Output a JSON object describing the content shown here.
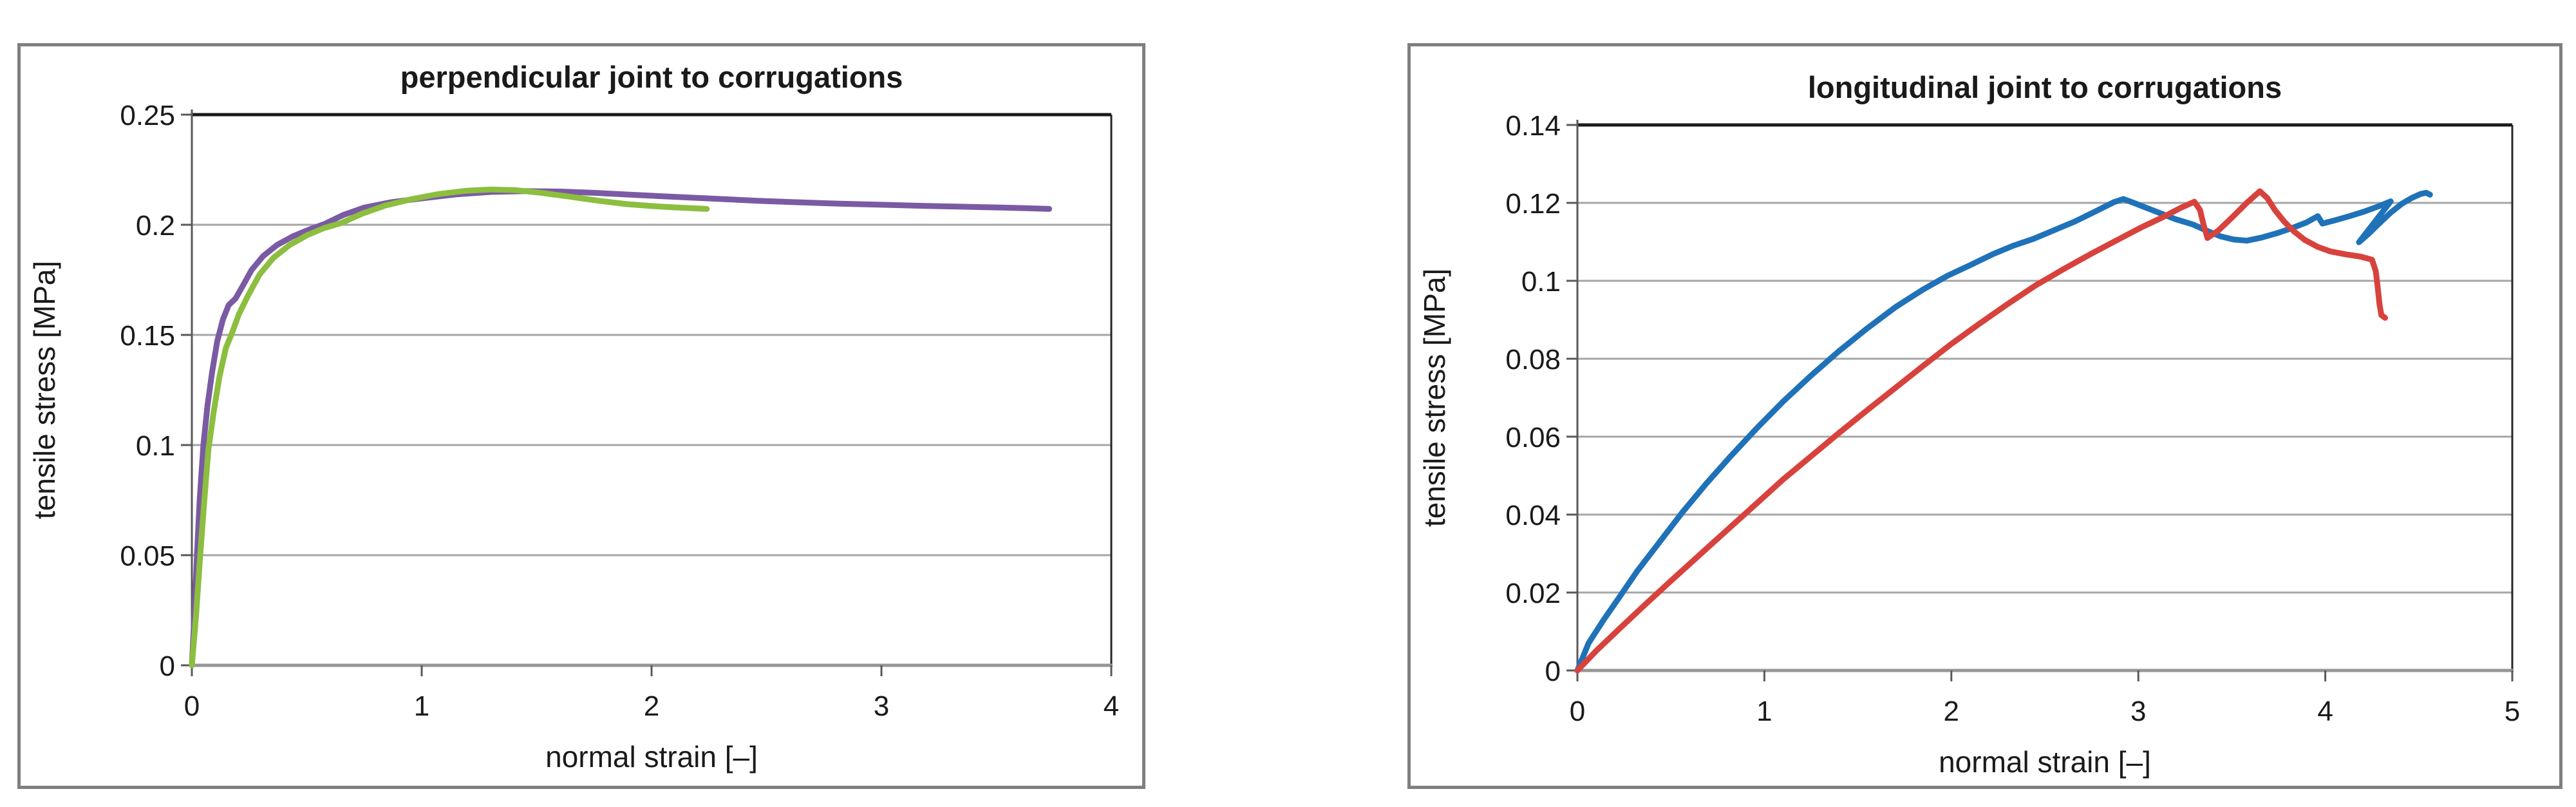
{
  "page": {
    "background": "#FFFFFF"
  },
  "style": {
    "grid_color": "#A6A6A6",
    "axis_color": "#595959",
    "top_border_color": "#1A1A1A",
    "right_border_color": "#262626",
    "bottom_axis_color": "#969696",
    "figure_border_color": "#7F7F7F",
    "text_color": "#1A1A1A",
    "background": "#FFFFFF"
  },
  "chart_data": [
    {
      "type": "line",
      "title": "perpendicular joint to corrugations",
      "xlabel": "normal strain [–]",
      "ylabel": "tensile stress [MPa]",
      "xlim": [
        0,
        4
      ],
      "ylim": [
        0,
        0.25
      ],
      "grid": true,
      "legend_position": "none",
      "xticks": [
        {
          "v": 0,
          "label": "0"
        },
        {
          "v": 1,
          "label": "1"
        },
        {
          "v": 2,
          "label": "2"
        },
        {
          "v": 3,
          "label": "3"
        },
        {
          "v": 4,
          "label": "4"
        }
      ],
      "yticks": [
        {
          "v": 0,
          "label": "0"
        },
        {
          "v": 0.05,
          "label": "0.05"
        },
        {
          "v": 0.1,
          "label": "0.1"
        },
        {
          "v": 0.15,
          "label": "0.15"
        },
        {
          "v": 0.2,
          "label": "0.2"
        },
        {
          "v": 0.25,
          "label": "0.25"
        }
      ],
      "series": [
        {
          "name": "purple-specimen",
          "color": "#7B5AA4",
          "points": [
            [
              0,
              0
            ],
            [
              0.012,
              0.025
            ],
            [
              0.022,
              0.05
            ],
            [
              0.034,
              0.075
            ],
            [
              0.05,
              0.1
            ],
            [
              0.068,
              0.118
            ],
            [
              0.088,
              0.133
            ],
            [
              0.11,
              0.147
            ],
            [
              0.135,
              0.157
            ],
            [
              0.16,
              0.1635
            ],
            [
              0.19,
              0.1665
            ],
            [
              0.22,
              0.172
            ],
            [
              0.26,
              0.1795
            ],
            [
              0.31,
              0.1858
            ],
            [
              0.37,
              0.1908
            ],
            [
              0.44,
              0.1948
            ],
            [
              0.51,
              0.1978
            ],
            [
              0.58,
              0.2005
            ],
            [
              0.66,
              0.2045
            ],
            [
              0.75,
              0.2078
            ],
            [
              0.87,
              0.2103
            ],
            [
              1.0,
              0.212
            ],
            [
              1.15,
              0.2138
            ],
            [
              1.3,
              0.2149
            ],
            [
              1.45,
              0.2153
            ],
            [
              1.6,
              0.2151
            ],
            [
              1.75,
              0.2145
            ],
            [
              1.92,
              0.2136
            ],
            [
              2.1,
              0.2127
            ],
            [
              2.28,
              0.2118
            ],
            [
              2.46,
              0.2109
            ],
            [
              2.64,
              0.2102
            ],
            [
              2.82,
              0.2096
            ],
            [
              3.0,
              0.2091
            ],
            [
              3.18,
              0.2086
            ],
            [
              3.36,
              0.2082
            ],
            [
              3.52,
              0.2078
            ],
            [
              3.64,
              0.2075
            ],
            [
              3.73,
              0.2072
            ]
          ]
        },
        {
          "name": "green-specimen",
          "color": "#8CBE3F",
          "points": [
            [
              0,
              0
            ],
            [
              0.018,
              0.022
            ],
            [
              0.035,
              0.048
            ],
            [
              0.052,
              0.072
            ],
            [
              0.072,
              0.098
            ],
            [
              0.095,
              0.115
            ],
            [
              0.12,
              0.131
            ],
            [
              0.148,
              0.144
            ],
            [
              0.175,
              0.151
            ],
            [
              0.205,
              0.1595
            ],
            [
              0.245,
              0.168
            ],
            [
              0.295,
              0.1775
            ],
            [
              0.355,
              0.185
            ],
            [
              0.425,
              0.1908
            ],
            [
              0.5,
              0.1952
            ],
            [
              0.575,
              0.1985
            ],
            [
              0.65,
              0.2008
            ],
            [
              0.74,
              0.205
            ],
            [
              0.84,
              0.2087
            ],
            [
              0.95,
              0.2115
            ],
            [
              1.07,
              0.2139
            ],
            [
              1.19,
              0.2154
            ],
            [
              1.3,
              0.216
            ],
            [
              1.41,
              0.2157
            ],
            [
              1.52,
              0.2145
            ],
            [
              1.64,
              0.2128
            ],
            [
              1.77,
              0.2109
            ],
            [
              1.89,
              0.2094
            ],
            [
              2.0,
              0.2085
            ],
            [
              2.1,
              0.2079
            ],
            [
              2.18,
              0.2075
            ],
            [
              2.24,
              0.2072
            ]
          ]
        }
      ]
    },
    {
      "type": "line",
      "title": "longitudinal joint to corrugations",
      "xlabel": "normal strain [–]",
      "ylabel": "tensile stress [MPa]",
      "xlim": [
        0,
        5
      ],
      "ylim": [
        0,
        0.14
      ],
      "grid": true,
      "legend_position": "none",
      "xticks": [
        {
          "v": 0,
          "label": "0"
        },
        {
          "v": 1,
          "label": "1"
        },
        {
          "v": 2,
          "label": "2"
        },
        {
          "v": 3,
          "label": "3"
        },
        {
          "v": 4,
          "label": "4"
        },
        {
          "v": 5,
          "label": "5"
        }
      ],
      "yticks": [
        {
          "v": 0,
          "label": "0"
        },
        {
          "v": 0.02,
          "label": "0.02"
        },
        {
          "v": 0.04,
          "label": "0.04"
        },
        {
          "v": 0.06,
          "label": "0.06"
        },
        {
          "v": 0.08,
          "label": "0.08"
        },
        {
          "v": 0.1,
          "label": "0.1"
        },
        {
          "v": 0.12,
          "label": "0.12"
        },
        {
          "v": 0.14,
          "label": "0.14"
        }
      ],
      "series": [
        {
          "name": "blue-specimen",
          "color": "#1F72B8",
          "points": [
            [
              0,
              0
            ],
            [
              0.06,
              0.007
            ],
            [
              0.14,
              0.013
            ],
            [
              0.22,
              0.0185
            ],
            [
              0.32,
              0.0255
            ],
            [
              0.44,
              0.033
            ],
            [
              0.56,
              0.0405
            ],
            [
              0.69,
              0.048
            ],
            [
              0.82,
              0.055
            ],
            [
              0.96,
              0.0622
            ],
            [
              1.1,
              0.069
            ],
            [
              1.25,
              0.0757
            ],
            [
              1.4,
              0.082
            ],
            [
              1.55,
              0.0878
            ],
            [
              1.7,
              0.0932
            ],
            [
              1.85,
              0.0978
            ],
            [
              1.98,
              0.1013
            ],
            [
              2.1,
              0.104
            ],
            [
              2.22,
              0.1068
            ],
            [
              2.33,
              0.109
            ],
            [
              2.44,
              0.1108
            ],
            [
              2.55,
              0.113
            ],
            [
              2.66,
              0.1152
            ],
            [
              2.77,
              0.1178
            ],
            [
              2.87,
              0.1202
            ],
            [
              2.92,
              0.121
            ],
            [
              2.97,
              0.1201
            ],
            [
              3.04,
              0.1188
            ],
            [
              3.12,
              0.1173
            ],
            [
              3.2,
              0.1158
            ],
            [
              3.29,
              0.1145
            ],
            [
              3.37,
              0.1128
            ],
            [
              3.44,
              0.1114
            ],
            [
              3.51,
              0.1106
            ],
            [
              3.58,
              0.1103
            ],
            [
              3.66,
              0.1111
            ],
            [
              3.74,
              0.1122
            ],
            [
              3.82,
              0.1135
            ],
            [
              3.9,
              0.115
            ],
            [
              3.96,
              0.1166
            ],
            [
              3.985,
              0.1147
            ],
            [
              4.05,
              0.1155
            ],
            [
              4.13,
              0.1166
            ],
            [
              4.21,
              0.1178
            ],
            [
              4.29,
              0.1192
            ],
            [
              4.35,
              0.1204
            ],
            [
              4.18,
              0.1099
            ],
            [
              4.23,
              0.112
            ],
            [
              4.29,
              0.1148
            ],
            [
              4.35,
              0.1175
            ],
            [
              4.41,
              0.1198
            ],
            [
              4.46,
              0.1212
            ],
            [
              4.51,
              0.1223
            ],
            [
              4.54,
              0.1226
            ],
            [
              4.56,
              0.1221
            ]
          ]
        },
        {
          "name": "red-specimen",
          "color": "#D8423C",
          "points": [
            [
              0,
              0
            ],
            [
              0.1,
              0.005
            ],
            [
              0.22,
              0.0105
            ],
            [
              0.36,
              0.0168
            ],
            [
              0.5,
              0.023
            ],
            [
              0.65,
              0.0295
            ],
            [
              0.8,
              0.036
            ],
            [
              0.95,
              0.0425
            ],
            [
              1.1,
              0.049
            ],
            [
              1.25,
              0.055
            ],
            [
              1.4,
              0.061
            ],
            [
              1.55,
              0.0668
            ],
            [
              1.7,
              0.0725
            ],
            [
              1.85,
              0.0782
            ],
            [
              2.0,
              0.0838
            ],
            [
              2.15,
              0.089
            ],
            [
              2.3,
              0.094
            ],
            [
              2.45,
              0.0988
            ],
            [
              2.6,
              0.103
            ],
            [
              2.75,
              0.107
            ],
            [
              2.9,
              0.1108
            ],
            [
              3.02,
              0.1138
            ],
            [
              3.13,
              0.1163
            ],
            [
              3.23,
              0.1188
            ],
            [
              3.3,
              0.1203
            ],
            [
              3.33,
              0.1182
            ],
            [
              3.35,
              0.1142
            ],
            [
              3.37,
              0.111
            ],
            [
              3.43,
              0.113
            ],
            [
              3.5,
              0.1162
            ],
            [
              3.58,
              0.12
            ],
            [
              3.65,
              0.123
            ],
            [
              3.69,
              0.1212
            ],
            [
              3.73,
              0.1182
            ],
            [
              3.78,
              0.1152
            ],
            [
              3.83,
              0.1128
            ],
            [
              3.89,
              0.1105
            ],
            [
              3.96,
              0.1087
            ],
            [
              4.03,
              0.1075
            ],
            [
              4.11,
              0.1068
            ],
            [
              4.19,
              0.1062
            ],
            [
              4.25,
              0.1054
            ],
            [
              4.27,
              0.1025
            ],
            [
              4.28,
              0.0985
            ],
            [
              4.29,
              0.094
            ],
            [
              4.3,
              0.0912
            ],
            [
              4.32,
              0.0905
            ]
          ]
        }
      ]
    }
  ]
}
